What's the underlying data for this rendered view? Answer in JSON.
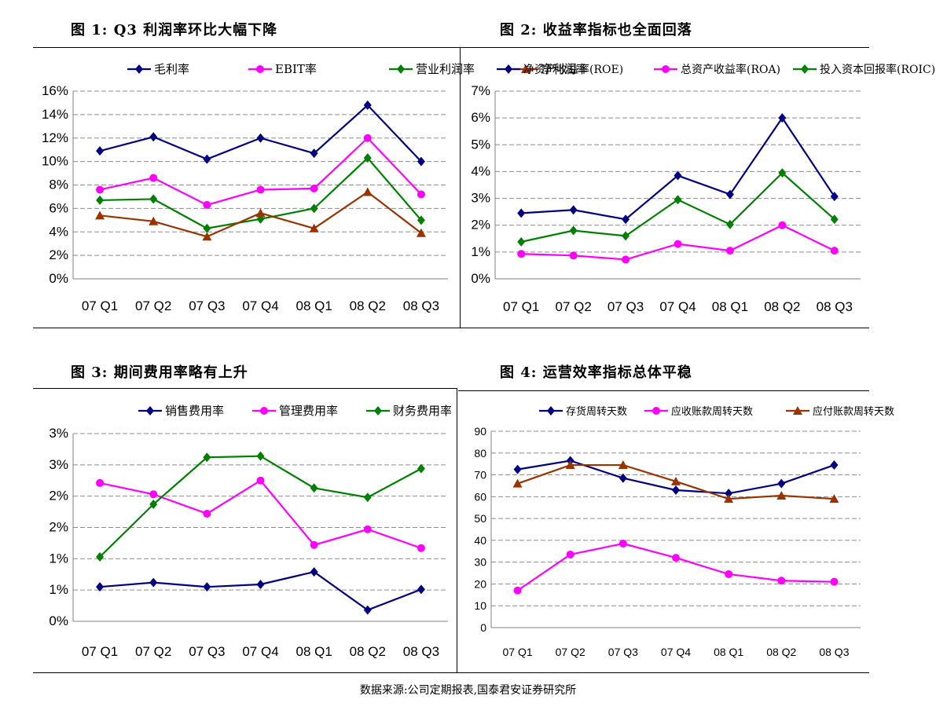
{
  "charts": [
    {
      "title": "图  1:  Q3 利润率环比大幅下降",
      "chart_data": {
        "type": "line",
        "categories": [
          "07 Q1",
          "07 Q2",
          "07 Q3",
          "07 Q4",
          "08 Q1",
          "08 Q2",
          "08 Q3"
        ],
        "y_ticks": [
          "0%",
          "2%",
          "4%",
          "6%",
          "8%",
          "10%",
          "12%",
          "14%",
          "16%"
        ],
        "ylim": [
          0,
          16
        ],
        "grid": true,
        "legend_position": "top",
        "series": [
          {
            "name": "毛利率",
            "color": "#000080",
            "marker": "diamond",
            "values": [
              10.9,
              12.1,
              10.2,
              12.0,
              10.7,
              14.8,
              10.0
            ]
          },
          {
            "name": "EBIT率",
            "color": "#ff00ff",
            "marker": "circle",
            "values": [
              7.6,
              8.6,
              6.3,
              7.6,
              7.7,
              12.0,
              7.2
            ]
          },
          {
            "name": "营业利润率",
            "color": "#008000",
            "marker": "diamond",
            "values": [
              6.7,
              6.8,
              4.3,
              5.1,
              6.0,
              10.3,
              5.0
            ]
          },
          {
            "name": "净利润率",
            "color": "#993300",
            "marker": "triangle",
            "values": [
              5.4,
              4.9,
              3.6,
              5.6,
              4.3,
              7.4,
              3.9
            ]
          }
        ]
      }
    },
    {
      "title": "图  2:  收益率指标也全面回落",
      "chart_data": {
        "type": "line",
        "categories": [
          "07 Q1",
          "07 Q2",
          "07 Q3",
          "07 Q4",
          "08 Q1",
          "08 Q2",
          "08 Q3"
        ],
        "y_ticks": [
          "0%",
          "1%",
          "2%",
          "3%",
          "4%",
          "5%",
          "6%",
          "7%"
        ],
        "ylim": [
          0,
          7
        ],
        "grid": true,
        "legend_position": "top",
        "series": [
          {
            "name": "净资产收益率(ROE)",
            "color": "#000080",
            "marker": "diamond",
            "values": [
              2.45,
              2.57,
              2.22,
              3.85,
              3.15,
              6.0,
              3.07
            ]
          },
          {
            "name": "总资产收益率(ROA)",
            "color": "#ff00ff",
            "marker": "circle",
            "values": [
              0.93,
              0.87,
              0.72,
              1.3,
              1.05,
              2.0,
              1.05
            ]
          },
          {
            "name": "投入资本回报率(ROIC)",
            "color": "#008000",
            "marker": "diamond",
            "values": [
              1.38,
              1.8,
              1.6,
              2.95,
              2.03,
              3.95,
              2.22
            ]
          }
        ]
      }
    },
    {
      "title": "图  3:  期间费用率略有上升",
      "chart_data": {
        "type": "line",
        "categories": [
          "07 Q1",
          "07 Q2",
          "07 Q3",
          "07 Q4",
          "08 Q1",
          "08 Q2",
          "08 Q3"
        ],
        "y_ticks": [
          "0%",
          "1%",
          "1%",
          "2%",
          "2%",
          "3%",
          "3%"
        ],
        "ylim": [
          0,
          3
        ],
        "grid": true,
        "legend_position": "top",
        "series": [
          {
            "name": "销售费用率",
            "color": "#000080",
            "marker": "diamond",
            "values": [
              0.55,
              0.62,
              0.55,
              0.59,
              0.79,
              0.18,
              0.51
            ]
          },
          {
            "name": "管理费用率",
            "color": "#ff00ff",
            "marker": "circle",
            "values": [
              2.21,
              2.03,
              1.72,
              2.25,
              1.22,
              1.47,
              1.17
            ]
          },
          {
            "name": "财务费用率",
            "color": "#008000",
            "marker": "diamond",
            "values": [
              1.03,
              1.87,
              2.62,
              2.64,
              2.13,
              1.98,
              2.44
            ]
          }
        ]
      }
    },
    {
      "title": "图  4:  运营效率指标总体平稳",
      "chart_data": {
        "type": "line",
        "categories": [
          "07 Q1",
          "07 Q2",
          "07 Q3",
          "07 Q4",
          "08 Q1",
          "08 Q2",
          "08 Q3"
        ],
        "y_ticks": [
          "0",
          "10",
          "20",
          "30",
          "40",
          "50",
          "60",
          "70",
          "80",
          "90"
        ],
        "ylim": [
          0,
          90
        ],
        "grid": true,
        "legend_position": "top",
        "series": [
          {
            "name": "存货周转天数",
            "color": "#000080",
            "marker": "diamond",
            "values": [
              72.5,
              76.5,
              68.5,
              63.0,
              61.5,
              66.0,
              74.5
            ]
          },
          {
            "name": "应收账款周转天数",
            "color": "#ff00ff",
            "marker": "circle",
            "values": [
              17.0,
              33.5,
              38.5,
              32.0,
              24.5,
              21.5,
              21.0
            ]
          },
          {
            "name": "应付账款周转天数",
            "color": "#993300",
            "marker": "triangle",
            "values": [
              66.0,
              74.5,
              74.5,
              67.0,
              59.0,
              60.5,
              59.0
            ]
          }
        ]
      }
    }
  ],
  "source": "数据来源:公司定期报表,国泰君安证券研究所"
}
